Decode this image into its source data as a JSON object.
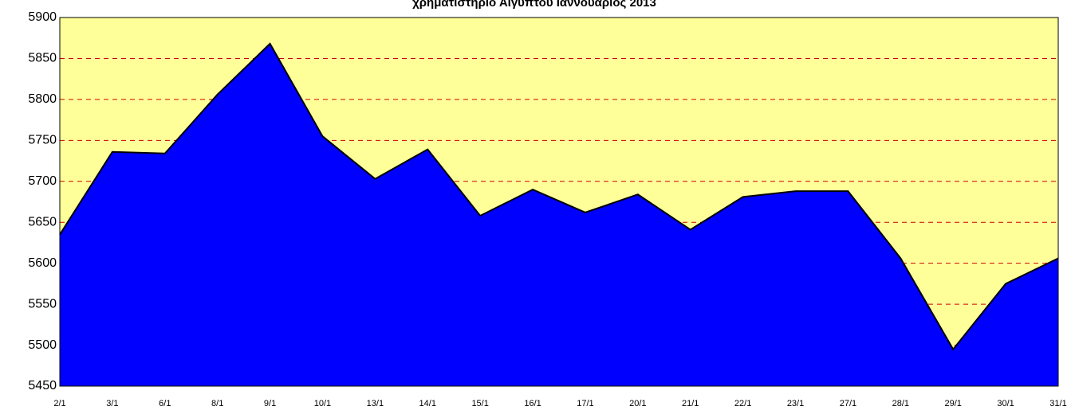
{
  "chart_data": {
    "type": "area",
    "title": "χρηματιστηριο Αιγυπτου Ιαννουαριος 2013",
    "categories": [
      "2/1",
      "3/1",
      "6/1",
      "8/1",
      "9/1",
      "10/1",
      "13/1",
      "14/1",
      "15/1",
      "16/1",
      "17/1",
      "20/1",
      "21/1",
      "22/1",
      "23/1",
      "27/1",
      "28/1",
      "29/1",
      "30/1",
      "31/1"
    ],
    "values": [
      5635,
      5736,
      5734,
      5806,
      5868,
      5755,
      5703,
      5739,
      5658,
      5690,
      5662,
      5684,
      5641,
      5681,
      5688,
      5688,
      5606,
      5495,
      5575,
      5606
    ],
    "color": "#0000ff",
    "background": "#ffff99",
    "grid_color": "#cc0000",
    "ylim": [
      5450,
      5900
    ],
    "yticks": [
      5450,
      5500,
      5550,
      5600,
      5650,
      5700,
      5750,
      5800,
      5850,
      5900
    ],
    "grid": true
  }
}
